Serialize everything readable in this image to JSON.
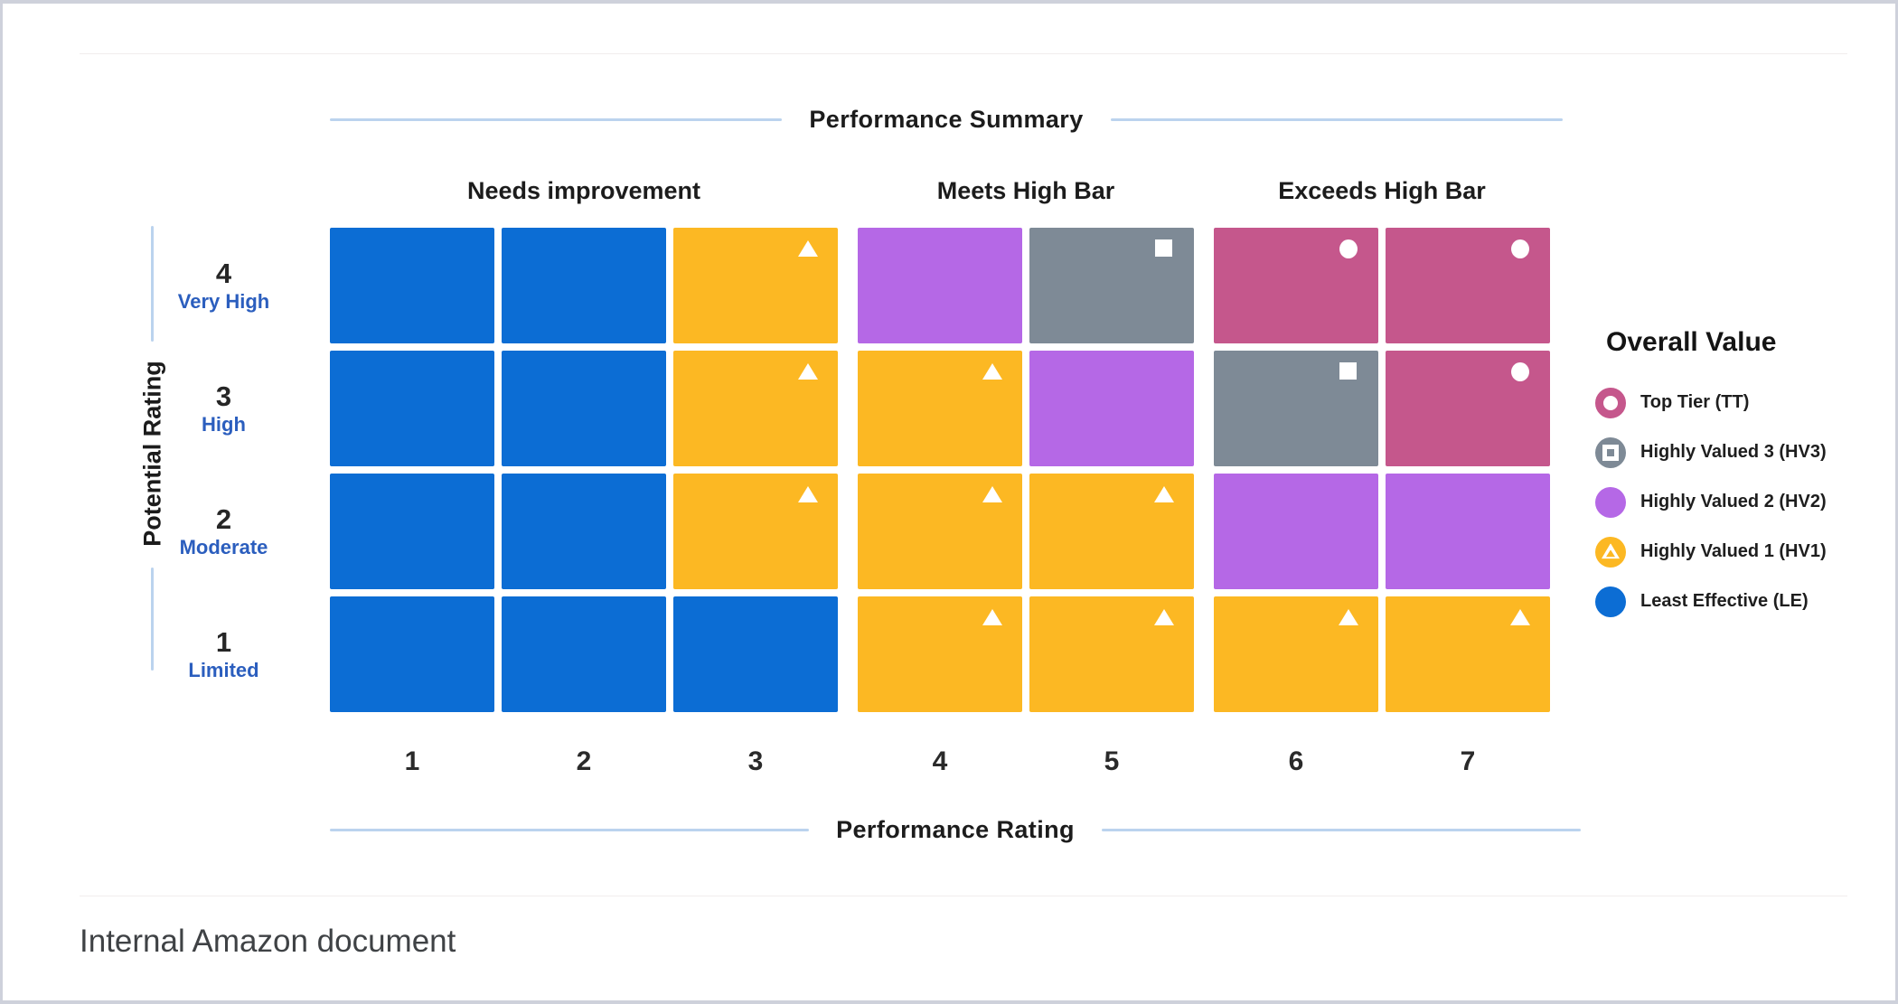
{
  "page": {
    "caption": "Internal Amazon document"
  },
  "chart_data": {
    "type": "heatmap",
    "title": "Performance Summary",
    "xlabel": "Performance Rating",
    "ylabel": "Potential Rating",
    "x_ticks": [
      "1",
      "2",
      "3",
      "4",
      "5",
      "6",
      "7"
    ],
    "column_groups": [
      {
        "label": "Needs improvement",
        "columns": [
          1,
          2,
          3
        ]
      },
      {
        "label": "Meets High Bar",
        "columns": [
          4,
          5
        ]
      },
      {
        "label": "Exceeds High Bar",
        "columns": [
          6,
          7
        ]
      }
    ],
    "rows": [
      {
        "potential": "4",
        "potential_label": "Very High",
        "cells": [
          "LE",
          "LE",
          "HV1",
          "HV2",
          "HV3",
          "TT",
          "TT"
        ]
      },
      {
        "potential": "3",
        "potential_label": "High",
        "cells": [
          "LE",
          "LE",
          "HV1",
          "HV1",
          "HV2",
          "HV3",
          "TT"
        ]
      },
      {
        "potential": "2",
        "potential_label": "Moderate",
        "cells": [
          "LE",
          "LE",
          "HV1",
          "HV1",
          "HV1",
          "HV2",
          "HV2"
        ]
      },
      {
        "potential": "1",
        "potential_label": "Limited",
        "cells": [
          "LE",
          "LE",
          "LE",
          "HV1",
          "HV1",
          "HV1",
          "HV1"
        ]
      }
    ],
    "categories": {
      "TT": {
        "label": "Top Tier (TT)",
        "color": "#C5578C",
        "marker": "circle"
      },
      "HV3": {
        "label": "Highly Valued 3 (HV3)",
        "color": "#7E8A96",
        "marker": "square"
      },
      "HV2": {
        "label": "Highly Valued 2 (HV2)",
        "color": "#B568E6",
        "marker": "none"
      },
      "HV1": {
        "label": "Highly Valued 1 (HV1)",
        "color": "#FCB823",
        "marker": "triangle"
      },
      "LE": {
        "label": "Least Effective (LE)",
        "color": "#0C6DD4",
        "marker": "none"
      }
    },
    "legend": {
      "title": "Overall Value",
      "order": [
        "TT",
        "HV3",
        "HV2",
        "HV1",
        "LE"
      ]
    },
    "style": {
      "axis_line_color": "#BBD3EE",
      "row_sublabel_color": "#2B5EBE",
      "grid_off": true,
      "legend_position": "right"
    }
  }
}
